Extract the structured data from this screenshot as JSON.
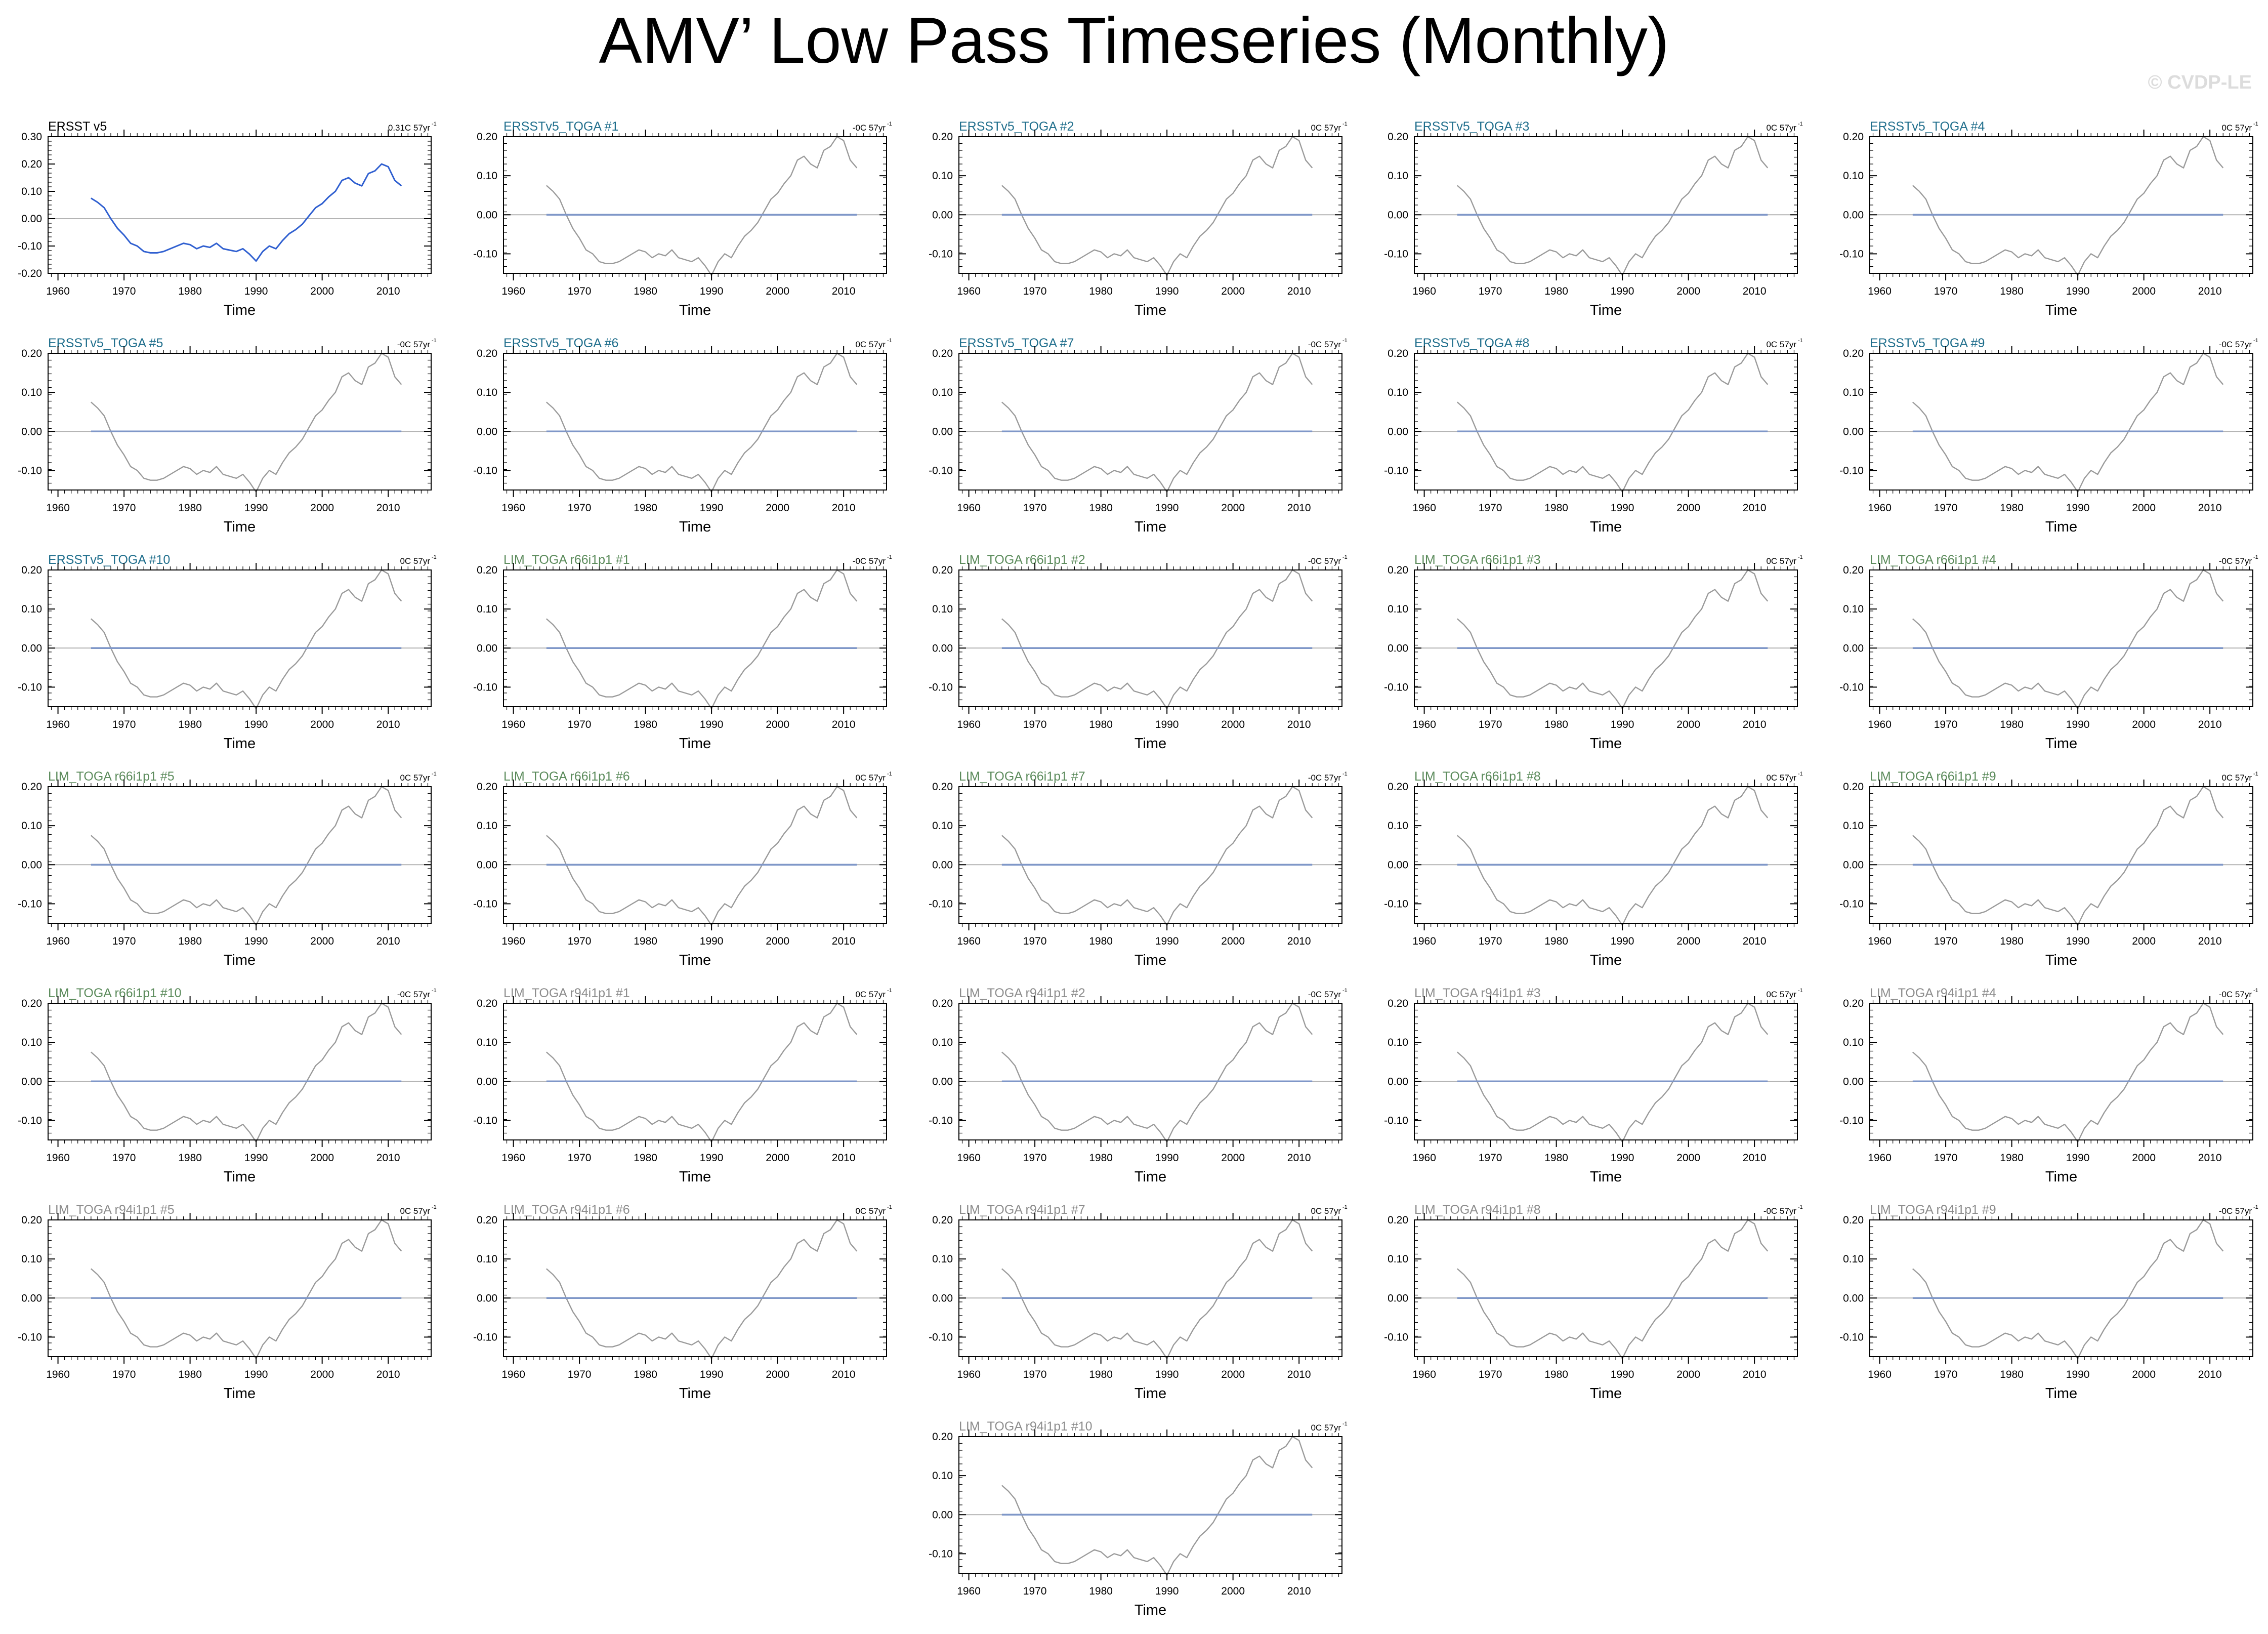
{
  "title": "AMV’ Low Pass Timeseries (Monthly)",
  "watermark": "© CVDP-LE",
  "colors": {
    "observed_line": "#2f5fd0",
    "ensemble_line": "#9a9a9a",
    "mean_line": "#7f97c8",
    "zero_line": "#b4b4b4",
    "label_ersst": "#000000",
    "label_ersstv5_toga": "#1f6e8c",
    "label_lim_r66": "#5a8a5a",
    "label_lim_r94": "#8c8c8c"
  },
  "chart_data": {
    "type": "line",
    "layout": "6 rows x 5 columns plus one centered panel in a 7th row",
    "xlabel": "Time",
    "xticks": [
      1960,
      1970,
      1980,
      1990,
      2000,
      2010
    ],
    "xlim": [
      1958.5,
      2016.5
    ],
    "observed_trace": {
      "x": [
        1965,
        1966,
        1967,
        1968,
        1969,
        1970,
        1971,
        1972,
        1973,
        1974,
        1975,
        1976,
        1977,
        1978,
        1979,
        1980,
        1981,
        1982,
        1983,
        1984,
        1985,
        1986,
        1987,
        1988,
        1989,
        1990,
        1991,
        1992,
        1993,
        1994,
        1995,
        1996,
        1997,
        1998,
        1999,
        2000,
        2001,
        2002,
        2003,
        2004,
        2005,
        2006,
        2007,
        2008,
        2009,
        2010,
        2011,
        2012
      ],
      "y": [
        0.075,
        0.06,
        0.04,
        0.0,
        -0.035,
        -0.06,
        -0.09,
        -0.1,
        -0.12,
        -0.125,
        -0.125,
        -0.12,
        -0.11,
        -0.1,
        -0.09,
        -0.095,
        -0.11,
        -0.1,
        -0.105,
        -0.09,
        -0.11,
        -0.115,
        -0.12,
        -0.11,
        -0.13,
        -0.155,
        -0.12,
        -0.1,
        -0.11,
        -0.08,
        -0.055,
        -0.04,
        -0.02,
        0.01,
        0.04,
        0.055,
        0.08,
        0.1,
        0.14,
        0.15,
        0.13,
        0.12,
        0.165,
        0.175,
        0.2,
        0.19,
        0.14,
        0.12
      ]
    },
    "panels": [
      {
        "label": "ERSST v5",
        "trend": "0.31C 57yr",
        "group": "ersst",
        "yticks": [
          "0.30",
          "0.20",
          "0.10",
          "0.00",
          "-0.10",
          "-0.20"
        ],
        "ylim": [
          -0.2,
          0.3
        ],
        "xlabel": "Time"
      },
      {
        "label": "ERSSTv5_TOGA #1",
        "trend": "-0C 57yr",
        "group": "ersstv5_toga",
        "yticks": [
          "0.20",
          "0.10",
          "0.00",
          "-0.10"
        ],
        "ylim": [
          -0.15,
          0.2
        ],
        "xlabel": "Time"
      },
      {
        "label": "ERSSTv5_TOGA #2",
        "trend": "0C 57yr",
        "group": "ersstv5_toga",
        "yticks": [
          "0.20",
          "0.10",
          "0.00",
          "-0.10"
        ],
        "ylim": [
          -0.15,
          0.2
        ],
        "xlabel": "Time"
      },
      {
        "label": "ERSSTv5_TOGA #3",
        "trend": "0C 57yr",
        "group": "ersstv5_toga",
        "yticks": [
          "0.20",
          "0.10",
          "0.00",
          "-0.10"
        ],
        "ylim": [
          -0.15,
          0.2
        ],
        "xlabel": "Time"
      },
      {
        "label": "ERSSTv5_TOGA #4",
        "trend": "0C 57yr",
        "group": "ersstv5_toga",
        "yticks": [
          "0.20",
          "0.10",
          "0.00",
          "-0.10"
        ],
        "ylim": [
          -0.15,
          0.2
        ],
        "xlabel": "Time"
      },
      {
        "label": "ERSSTv5_TOGA #5",
        "trend": "-0C 57yr",
        "group": "ersstv5_toga",
        "yticks": [
          "0.20",
          "0.10",
          "0.00",
          "-0.10"
        ],
        "ylim": [
          -0.15,
          0.2
        ],
        "xlabel": "Time"
      },
      {
        "label": "ERSSTv5_TOGA #6",
        "trend": "0C 57yr",
        "group": "ersstv5_toga",
        "yticks": [
          "0.20",
          "0.10",
          "0.00",
          "-0.10"
        ],
        "ylim": [
          -0.15,
          0.2
        ],
        "xlabel": "Time"
      },
      {
        "label": "ERSSTv5_TOGA #7",
        "trend": "-0C 57yr",
        "group": "ersstv5_toga",
        "yticks": [
          "0.20",
          "0.10",
          "0.00",
          "-0.10"
        ],
        "ylim": [
          -0.15,
          0.2
        ],
        "xlabel": "Time"
      },
      {
        "label": "ERSSTv5_TOGA #8",
        "trend": "0C 57yr",
        "group": "ersstv5_toga",
        "yticks": [
          "0.20",
          "0.10",
          "0.00",
          "-0.10"
        ],
        "ylim": [
          -0.15,
          0.2
        ],
        "xlabel": "Time"
      },
      {
        "label": "ERSSTv5_TOGA #9",
        "trend": "-0C 57yr",
        "group": "ersstv5_toga",
        "yticks": [
          "0.20",
          "0.10",
          "0.00",
          "-0.10"
        ],
        "ylim": [
          -0.15,
          0.2
        ],
        "xlabel": "Time"
      },
      {
        "label": "ERSSTv5_TOGA #10",
        "trend": "0C 57yr",
        "group": "ersstv5_toga",
        "yticks": [
          "0.20",
          "0.10",
          "0.00",
          "-0.10"
        ],
        "ylim": [
          -0.15,
          0.2
        ],
        "xlabel": "Time"
      },
      {
        "label": "LIM_TOGA r66i1p1 #1",
        "trend": "-0C 57yr",
        "group": "lim_r66",
        "yticks": [
          "0.20",
          "0.10",
          "0.00",
          "-0.10"
        ],
        "ylim": [
          -0.15,
          0.2
        ],
        "xlabel": "Time"
      },
      {
        "label": "LIM_TOGA r66i1p1 #2",
        "trend": "-0C 57yr",
        "group": "lim_r66",
        "yticks": [
          "0.20",
          "0.10",
          "0.00",
          "-0.10"
        ],
        "ylim": [
          -0.15,
          0.2
        ],
        "xlabel": "Time"
      },
      {
        "label": "LIM_TOGA r66i1p1 #3",
        "trend": "0C 57yr",
        "group": "lim_r66",
        "yticks": [
          "0.20",
          "0.10",
          "0.00",
          "-0.10"
        ],
        "ylim": [
          -0.15,
          0.2
        ],
        "xlabel": "Time"
      },
      {
        "label": "LIM_TOGA r66i1p1 #4",
        "trend": "-0C 57yr",
        "group": "lim_r66",
        "yticks": [
          "0.20",
          "0.10",
          "0.00",
          "-0.10"
        ],
        "ylim": [
          -0.15,
          0.2
        ],
        "xlabel": "Time"
      },
      {
        "label": "LIM_TOGA r66i1p1 #5",
        "trend": "0C 57yr",
        "group": "lim_r66",
        "yticks": [
          "0.20",
          "0.10",
          "0.00",
          "-0.10"
        ],
        "ylim": [
          -0.15,
          0.2
        ],
        "xlabel": "Time"
      },
      {
        "label": "LIM_TOGA r66i1p1 #6",
        "trend": "0C 57yr",
        "group": "lim_r66",
        "yticks": [
          "0.20",
          "0.10",
          "0.00",
          "-0.10"
        ],
        "ylim": [
          -0.15,
          0.2
        ],
        "xlabel": "Time"
      },
      {
        "label": "LIM_TOGA r66i1p1 #7",
        "trend": "-0C 57yr",
        "group": "lim_r66",
        "yticks": [
          "0.20",
          "0.10",
          "0.00",
          "-0.10"
        ],
        "ylim": [
          -0.15,
          0.2
        ],
        "xlabel": "Time"
      },
      {
        "label": "LIM_TOGA r66i1p1 #8",
        "trend": "0C 57yr",
        "group": "lim_r66",
        "yticks": [
          "0.20",
          "0.10",
          "0.00",
          "-0.10"
        ],
        "ylim": [
          -0.15,
          0.2
        ],
        "xlabel": "Time"
      },
      {
        "label": "LIM_TOGA r66i1p1 #9",
        "trend": "0C 57yr",
        "group": "lim_r66",
        "yticks": [
          "0.20",
          "0.10",
          "0.00",
          "-0.10"
        ],
        "ylim": [
          -0.15,
          0.2
        ],
        "xlabel": "Time"
      },
      {
        "label": "LIM_TOGA r66i1p1 #10",
        "trend": "-0C 57yr",
        "group": "lim_r66",
        "yticks": [
          "0.20",
          "0.10",
          "0.00",
          "-0.10"
        ],
        "ylim": [
          -0.15,
          0.2
        ],
        "xlabel": "Time"
      },
      {
        "label": "LIM_TOGA r94i1p1 #1",
        "trend": "0C 57yr",
        "group": "lim_r94",
        "yticks": [
          "0.20",
          "0.10",
          "0.00",
          "-0.10"
        ],
        "ylim": [
          -0.15,
          0.2
        ],
        "xlabel": "Time"
      },
      {
        "label": "LIM_TOGA r94i1p1 #2",
        "trend": "-0C 57yr",
        "group": "lim_r94",
        "yticks": [
          "0.20",
          "0.10",
          "0.00",
          "-0.10"
        ],
        "ylim": [
          -0.15,
          0.2
        ],
        "xlabel": "Time"
      },
      {
        "label": "LIM_TOGA r94i1p1 #3",
        "trend": "0C 57yr",
        "group": "lim_r94",
        "yticks": [
          "0.20",
          "0.10",
          "0.00",
          "-0.10"
        ],
        "ylim": [
          -0.15,
          0.2
        ],
        "xlabel": "Time"
      },
      {
        "label": "LIM_TOGA r94i1p1 #4",
        "trend": "-0C 57yr",
        "group": "lim_r94",
        "yticks": [
          "0.20",
          "0.10",
          "0.00",
          "-0.10"
        ],
        "ylim": [
          -0.15,
          0.2
        ],
        "xlabel": "Time"
      },
      {
        "label": "LIM_TOGA r94i1p1 #5",
        "trend": "0C 57yr",
        "group": "lim_r94",
        "yticks": [
          "0.20",
          "0.10",
          "0.00",
          "-0.10"
        ],
        "ylim": [
          -0.15,
          0.2
        ],
        "xlabel": "Time"
      },
      {
        "label": "LIM_TOGA r94i1p1 #6",
        "trend": "0C 57yr",
        "group": "lim_r94",
        "yticks": [
          "0.20",
          "0.10",
          "0.00",
          "-0.10"
        ],
        "ylim": [
          -0.15,
          0.2
        ],
        "xlabel": "Time"
      },
      {
        "label": "LIM_TOGA r94i1p1 #7",
        "trend": "0C 57yr",
        "group": "lim_r94",
        "yticks": [
          "0.20",
          "0.10",
          "0.00",
          "-0.10"
        ],
        "ylim": [
          -0.15,
          0.2
        ],
        "xlabel": "Time"
      },
      {
        "label": "LIM_TOGA r94i1p1 #8",
        "trend": "-0C 57yr",
        "group": "lim_r94",
        "yticks": [
          "0.20",
          "0.10",
          "0.00",
          "-0.10"
        ],
        "ylim": [
          -0.15,
          0.2
        ],
        "xlabel": "Time"
      },
      {
        "label": "LIM_TOGA r94i1p1 #9",
        "trend": "-0C 57yr",
        "group": "lim_r94",
        "yticks": [
          "0.20",
          "0.10",
          "0.00",
          "-0.10"
        ],
        "ylim": [
          -0.15,
          0.2
        ],
        "xlabel": "Time"
      },
      {
        "label": "LIM_TOGA r94i1p1 #10",
        "trend": "0C 57yr",
        "group": "lim_r94",
        "yticks": [
          "0.20",
          "0.10",
          "0.00",
          "-0.10"
        ],
        "ylim": [
          -0.15,
          0.2
        ],
        "xlabel": "Time"
      }
    ]
  }
}
